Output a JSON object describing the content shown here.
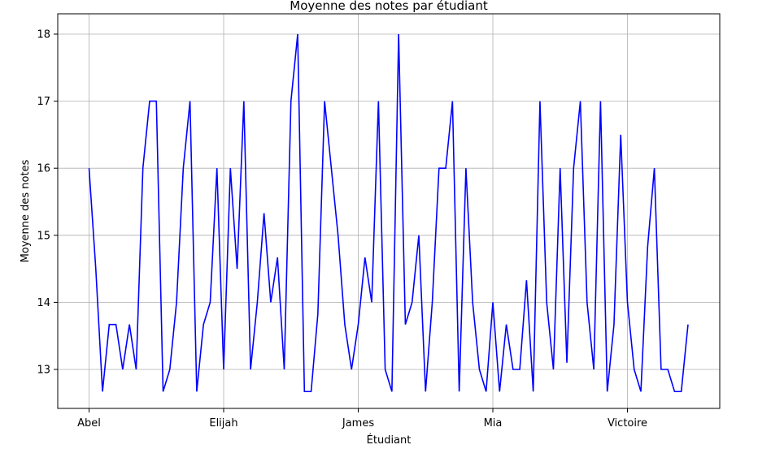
{
  "chart_data": {
    "type": "line",
    "title": "Moyenne des notes par étudiant",
    "xlabel": "Étudiant",
    "ylabel": "Moyenne des notes",
    "x_tick_labels": [
      "Abel",
      "Elijah",
      "James",
      "Mia",
      "Victoire"
    ],
    "x_tick_indices": [
      0,
      20,
      40,
      60,
      80
    ],
    "y_ticks": [
      13,
      14,
      15,
      16,
      17,
      18
    ],
    "ylim": [
      12.4,
      18.2
    ],
    "grid": true,
    "line_color": "#0000ff",
    "series": [
      {
        "values": [
          16,
          14.5,
          12.67,
          13.67,
          13.67,
          13,
          13.67,
          13,
          16,
          17,
          17,
          12.67,
          13,
          14,
          16,
          17,
          12.67,
          13.67,
          14,
          16,
          13,
          16,
          14.5,
          17,
          13,
          14,
          15.33,
          14,
          14.67,
          13,
          17,
          18,
          12.67,
          12.67,
          13.83,
          17,
          16,
          15,
          13.67,
          13,
          13.67,
          14.67,
          14,
          17,
          13,
          12.67,
          18,
          13.67,
          14,
          15,
          12.67,
          14,
          16,
          16,
          17,
          12.67,
          16,
          14,
          13,
          12.67,
          14,
          12.67,
          13.67,
          13,
          13,
          14.33,
          12.67,
          17,
          14,
          13,
          16,
          13.1,
          16,
          17,
          14,
          13,
          17,
          12.67,
          13.67,
          16.5,
          14,
          13,
          12.67,
          14.83,
          16,
          13,
          13,
          12.67,
          12.67,
          13.67
        ]
      }
    ]
  }
}
